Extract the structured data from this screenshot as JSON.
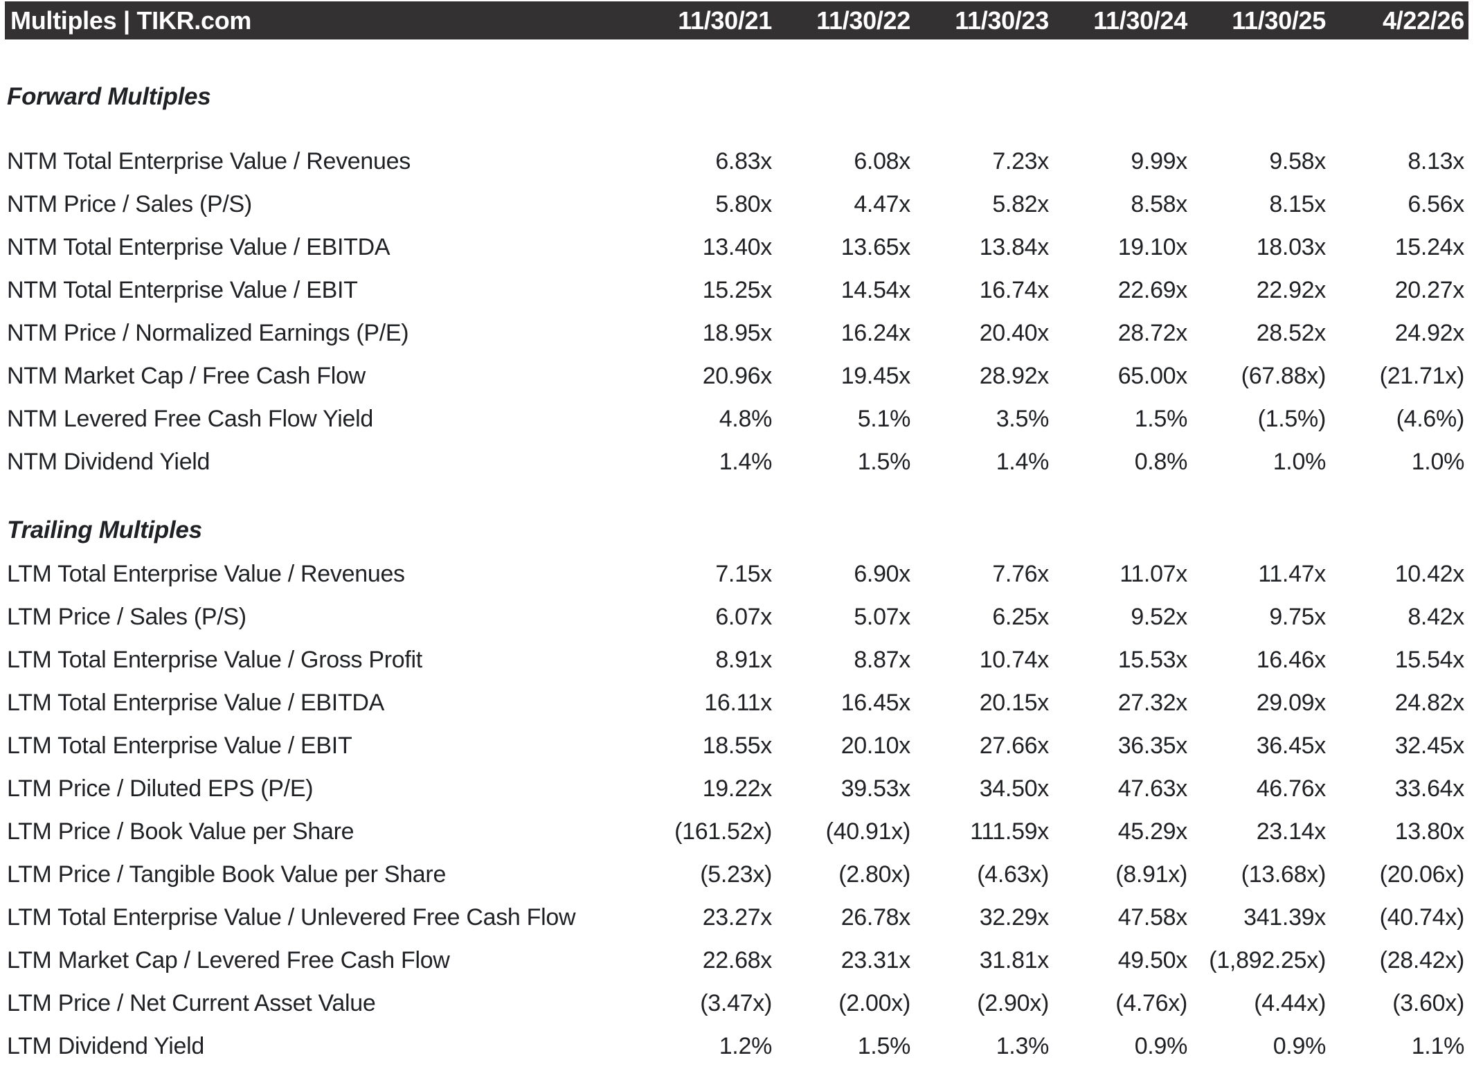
{
  "header": {
    "title": "Multiples | TIKR.com"
  },
  "colors": {
    "header_bg": "#333132",
    "header_text": "#ffffff",
    "body_text": "#1f2124",
    "background": "#ffffff"
  },
  "chart_data": {
    "type": "table",
    "title": "Multiples | TIKR.com",
    "columns": [
      "11/30/21",
      "11/30/22",
      "11/30/23",
      "11/30/24",
      "11/30/25",
      "4/22/26"
    ],
    "negative_format": "parentheses",
    "layout": "label column left-aligned, six date columns right-aligned",
    "sections": [
      {
        "title": "Forward Multiples",
        "rows": [
          {
            "label": "NTM Total Enterprise Value / Revenues",
            "values": [
              "6.83x",
              "6.08x",
              "7.23x",
              "9.99x",
              "9.58x",
              "8.13x"
            ]
          },
          {
            "label": "NTM Price / Sales (P/S)",
            "values": [
              "5.80x",
              "4.47x",
              "5.82x",
              "8.58x",
              "8.15x",
              "6.56x"
            ]
          },
          {
            "label": "NTM Total Enterprise Value / EBITDA",
            "values": [
              "13.40x",
              "13.65x",
              "13.84x",
              "19.10x",
              "18.03x",
              "15.24x"
            ]
          },
          {
            "label": "NTM Total Enterprise Value / EBIT",
            "values": [
              "15.25x",
              "14.54x",
              "16.74x",
              "22.69x",
              "22.92x",
              "20.27x"
            ]
          },
          {
            "label": "NTM Price / Normalized Earnings (P/E)",
            "values": [
              "18.95x",
              "16.24x",
              "20.40x",
              "28.72x",
              "28.52x",
              "24.92x"
            ]
          },
          {
            "label": "NTM Market Cap / Free Cash Flow",
            "values": [
              "20.96x",
              "19.45x",
              "28.92x",
              "65.00x",
              "(67.88x)",
              "(21.71x)"
            ]
          },
          {
            "label": "NTM Levered Free Cash Flow Yield",
            "values": [
              "4.8%",
              "5.1%",
              "3.5%",
              "1.5%",
              "(1.5%)",
              "(4.6%)"
            ]
          },
          {
            "label": "NTM Dividend Yield",
            "values": [
              "1.4%",
              "1.5%",
              "1.4%",
              "0.8%",
              "1.0%",
              "1.0%"
            ]
          }
        ]
      },
      {
        "title": "Trailing Multiples",
        "rows": [
          {
            "label": "LTM Total Enterprise Value / Revenues",
            "values": [
              "7.15x",
              "6.90x",
              "7.76x",
              "11.07x",
              "11.47x",
              "10.42x"
            ]
          },
          {
            "label": "LTM Price / Sales (P/S)",
            "values": [
              "6.07x",
              "5.07x",
              "6.25x",
              "9.52x",
              "9.75x",
              "8.42x"
            ]
          },
          {
            "label": "LTM Total Enterprise Value / Gross Profit",
            "values": [
              "8.91x",
              "8.87x",
              "10.74x",
              "15.53x",
              "16.46x",
              "15.54x"
            ]
          },
          {
            "label": "LTM Total Enterprise Value / EBITDA",
            "values": [
              "16.11x",
              "16.45x",
              "20.15x",
              "27.32x",
              "29.09x",
              "24.82x"
            ]
          },
          {
            "label": "LTM Total Enterprise Value / EBIT",
            "values": [
              "18.55x",
              "20.10x",
              "27.66x",
              "36.35x",
              "36.45x",
              "32.45x"
            ]
          },
          {
            "label": "LTM Price / Diluted EPS (P/E)",
            "values": [
              "19.22x",
              "39.53x",
              "34.50x",
              "47.63x",
              "46.76x",
              "33.64x"
            ]
          },
          {
            "label": "LTM Price / Book Value per Share",
            "values": [
              "(161.52x)",
              "(40.91x)",
              "111.59x",
              "45.29x",
              "23.14x",
              "13.80x"
            ]
          },
          {
            "label": "LTM Price / Tangible Book Value per Share",
            "values": [
              "(5.23x)",
              "(2.80x)",
              "(4.63x)",
              "(8.91x)",
              "(13.68x)",
              "(20.06x)"
            ]
          },
          {
            "label": "LTM Total Enterprise Value / Unlevered Free Cash Flow",
            "values": [
              "23.27x",
              "26.78x",
              "32.29x",
              "47.58x",
              "341.39x",
              "(40.74x)"
            ]
          },
          {
            "label": "LTM Market Cap / Levered Free Cash Flow",
            "values": [
              "22.68x",
              "23.31x",
              "31.81x",
              "49.50x",
              "(1,892.25x)",
              "(28.42x)"
            ]
          },
          {
            "label": "LTM Price / Net Current Asset Value",
            "values": [
              "(3.47x)",
              "(2.00x)",
              "(2.90x)",
              "(4.76x)",
              "(4.44x)",
              "(3.60x)"
            ]
          },
          {
            "label": "LTM Dividend Yield",
            "values": [
              "1.2%",
              "1.5%",
              "1.3%",
              "0.9%",
              "0.9%",
              "1.1%"
            ]
          }
        ]
      }
    ]
  }
}
